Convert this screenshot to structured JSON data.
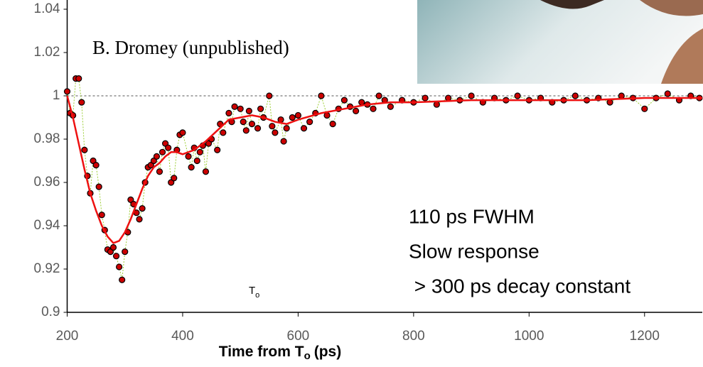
{
  "chart_data": {
    "type": "scatter",
    "x_label": [
      "Time from T",
      "o",
      "(ps)"
    ],
    "credit": "B. Dromey (unpublished)",
    "annotations": [
      "110 ps FWHM",
      "Slow response",
      " > 300 ps decay constant"
    ],
    "marker_label": [
      "T",
      "o"
    ],
    "xlim": [
      200,
      1300
    ],
    "ylim": [
      0.9,
      1.04
    ],
    "xticks": [
      200,
      400,
      600,
      800,
      1000,
      1200
    ],
    "yticks": [
      0.9,
      0.92,
      0.94,
      0.96,
      0.98,
      1,
      1.02,
      1.04
    ],
    "reference_line": 1,
    "series": [
      {
        "type": "scatter",
        "color": "#cc0000",
        "x": [
          200,
          205,
          210,
          215,
          220,
          225,
          230,
          235,
          240,
          245,
          250,
          255,
          260,
          265,
          270,
          275,
          280,
          285,
          290,
          295,
          300,
          305,
          310,
          315,
          320,
          325,
          330,
          335,
          340,
          345,
          350,
          355,
          360,
          365,
          370,
          375,
          380,
          385,
          390,
          395,
          400,
          410,
          415,
          420,
          425,
          430,
          435,
          440,
          445,
          450,
          460,
          465,
          470,
          480,
          485,
          490,
          500,
          505,
          510,
          515,
          520,
          530,
          535,
          540,
          550,
          555,
          560,
          570,
          575,
          580,
          590,
          600,
          610,
          620,
          630,
          640,
          650,
          660,
          670,
          680,
          690,
          700,
          710,
          720,
          730,
          740,
          750,
          760,
          780,
          800,
          820,
          840,
          860,
          880,
          900,
          920,
          940,
          960,
          980,
          1000,
          1020,
          1040,
          1060,
          1080,
          1100,
          1120,
          1140,
          1160,
          1180,
          1200,
          1220,
          1240,
          1260,
          1280,
          1295
        ],
        "values": [
          1.002,
          0.992,
          0.991,
          1.008,
          1.008,
          0.997,
          0.975,
          0.963,
          0.955,
          0.97,
          0.968,
          0.958,
          0.945,
          0.938,
          0.929,
          0.928,
          0.93,
          0.926,
          0.921,
          0.915,
          0.928,
          0.937,
          0.952,
          0.95,
          0.946,
          0.943,
          0.948,
          0.96,
          0.967,
          0.968,
          0.97,
          0.972,
          0.965,
          0.974,
          0.978,
          0.976,
          0.96,
          0.962,
          0.975,
          0.982,
          0.983,
          0.972,
          0.967,
          0.976,
          0.97,
          0.974,
          0.977,
          0.965,
          0.978,
          0.98,
          0.975,
          0.987,
          0.983,
          0.992,
          0.988,
          0.995,
          0.994,
          0.988,
          0.984,
          0.993,
          0.987,
          0.985,
          0.994,
          0.99,
          1.0,
          0.986,
          0.983,
          0.989,
          0.979,
          0.985,
          0.99,
          0.991,
          0.985,
          0.988,
          0.992,
          1.0,
          0.991,
          0.987,
          0.994,
          0.998,
          0.995,
          0.993,
          0.997,
          0.996,
          0.994,
          1.0,
          0.998,
          0.995,
          0.998,
          0.997,
          0.999,
          0.996,
          0.999,
          0.998,
          1.0,
          0.997,
          0.999,
          0.998,
          1.0,
          0.998,
          0.999,
          0.997,
          0.998,
          1.0,
          0.998,
          0.999,
          0.997,
          1.0,
          0.999,
          0.994,
          0.999,
          1.001,
          0.998,
          1.0,
          0.999
        ]
      },
      {
        "type": "line",
        "color": "#ee1111",
        "x": [
          200,
          210,
          220,
          230,
          240,
          250,
          260,
          270,
          280,
          290,
          300,
          310,
          320,
          330,
          340,
          350,
          360,
          370,
          380,
          390,
          400,
          420,
          440,
          460,
          480,
          500,
          520,
          540,
          560,
          580,
          600,
          640,
          680,
          720,
          760,
          800,
          900,
          1000,
          1100,
          1200,
          1300
        ],
        "values": [
          1.0,
          0.99,
          0.978,
          0.966,
          0.955,
          0.947,
          0.94,
          0.935,
          0.932,
          0.933,
          0.937,
          0.943,
          0.95,
          0.957,
          0.963,
          0.967,
          0.969,
          0.972,
          0.974,
          0.974,
          0.973,
          0.975,
          0.979,
          0.984,
          0.989,
          0.99,
          0.991,
          0.99,
          0.988,
          0.987,
          0.989,
          0.992,
          0.994,
          0.996,
          0.997,
          0.997,
          0.998,
          0.998,
          0.998,
          0.999,
          0.999
        ]
      }
    ]
  }
}
